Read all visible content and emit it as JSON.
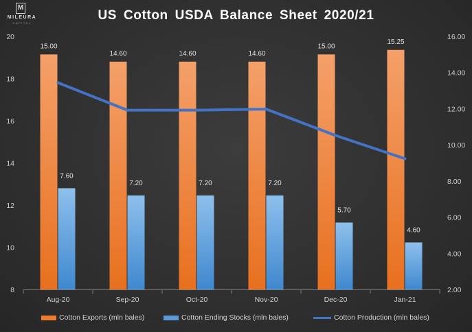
{
  "logo": {
    "mark": "M",
    "brand": "MILEURA",
    "sub": "CAPITAL"
  },
  "chart_data": {
    "type": "bar",
    "title": "US Cotton  USDA Balance  Sheet 2020/21",
    "categories": [
      "Aug-20",
      "Sep-20",
      "Oct-20",
      "Nov-20",
      "Dec-20",
      "Jan-21"
    ],
    "series": [
      {
        "name": "Cotton Exports (mln bales)",
        "type": "bar",
        "axis": "right",
        "values": [
          15.0,
          14.6,
          14.6,
          14.6,
          15.0,
          15.25
        ],
        "labels": [
          "15.00",
          "14.60",
          "14.60",
          "14.60",
          "15.00",
          "15.25"
        ],
        "color": "#ed7d31"
      },
      {
        "name": "Cotton Ending Stocks (mln bales)",
        "type": "bar",
        "axis": "right",
        "values": [
          7.6,
          7.2,
          7.2,
          7.2,
          5.7,
          4.6
        ],
        "labels": [
          "7.60",
          "7.20",
          "7.20",
          "7.20",
          "5.70",
          "4.60"
        ],
        "color": "#5b9bd5"
      },
      {
        "name": "Cotton Production (mln bales)",
        "type": "line",
        "axis": "left",
        "values": [
          17.8,
          16.5,
          16.5,
          16.55,
          15.3,
          14.2
        ],
        "color": "#4472c4"
      }
    ],
    "left_axis": {
      "min": 8,
      "max": 20,
      "ticks": [
        "8",
        "10",
        "12",
        "14",
        "16",
        "18",
        "20"
      ]
    },
    "right_axis": {
      "min": 2,
      "max": 16,
      "ticks": [
        "2.00",
        "4.00",
        "6.00",
        "8.00",
        "10.00",
        "12.00",
        "14.00",
        "16.00"
      ]
    },
    "legend_position": "bottom"
  }
}
